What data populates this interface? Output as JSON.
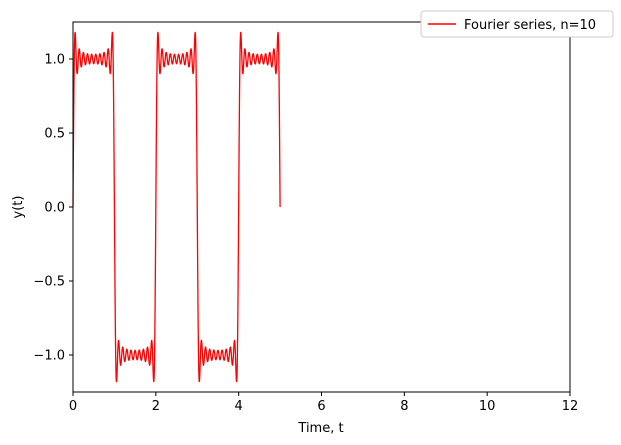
{
  "chart_data": {
    "type": "line",
    "title": "",
    "xlabel": "Time, t",
    "ylabel": "y(t)",
    "xlim": [
      0,
      12
    ],
    "ylim": [
      -1.25,
      1.25
    ],
    "xticks": [
      0,
      2,
      4,
      6,
      8,
      10,
      12
    ],
    "xtick_labels": [
      "0",
      "2",
      "4",
      "6",
      "8",
      "10",
      "12"
    ],
    "yticks": [
      -1.0,
      -0.5,
      0.0,
      0.5,
      1.0
    ],
    "ytick_labels": [
      "−1.0",
      "−0.5",
      "0.0",
      "0.5",
      "1.0"
    ],
    "grid": false,
    "legend_position": "top-right",
    "series": [
      {
        "name": "Fourier series, n=10",
        "color": "#ff0000",
        "function": "square-wave Fourier partial sum, 10 odd harmonics, period 2",
        "t_range": [
          0,
          5
        ]
      }
    ]
  }
}
